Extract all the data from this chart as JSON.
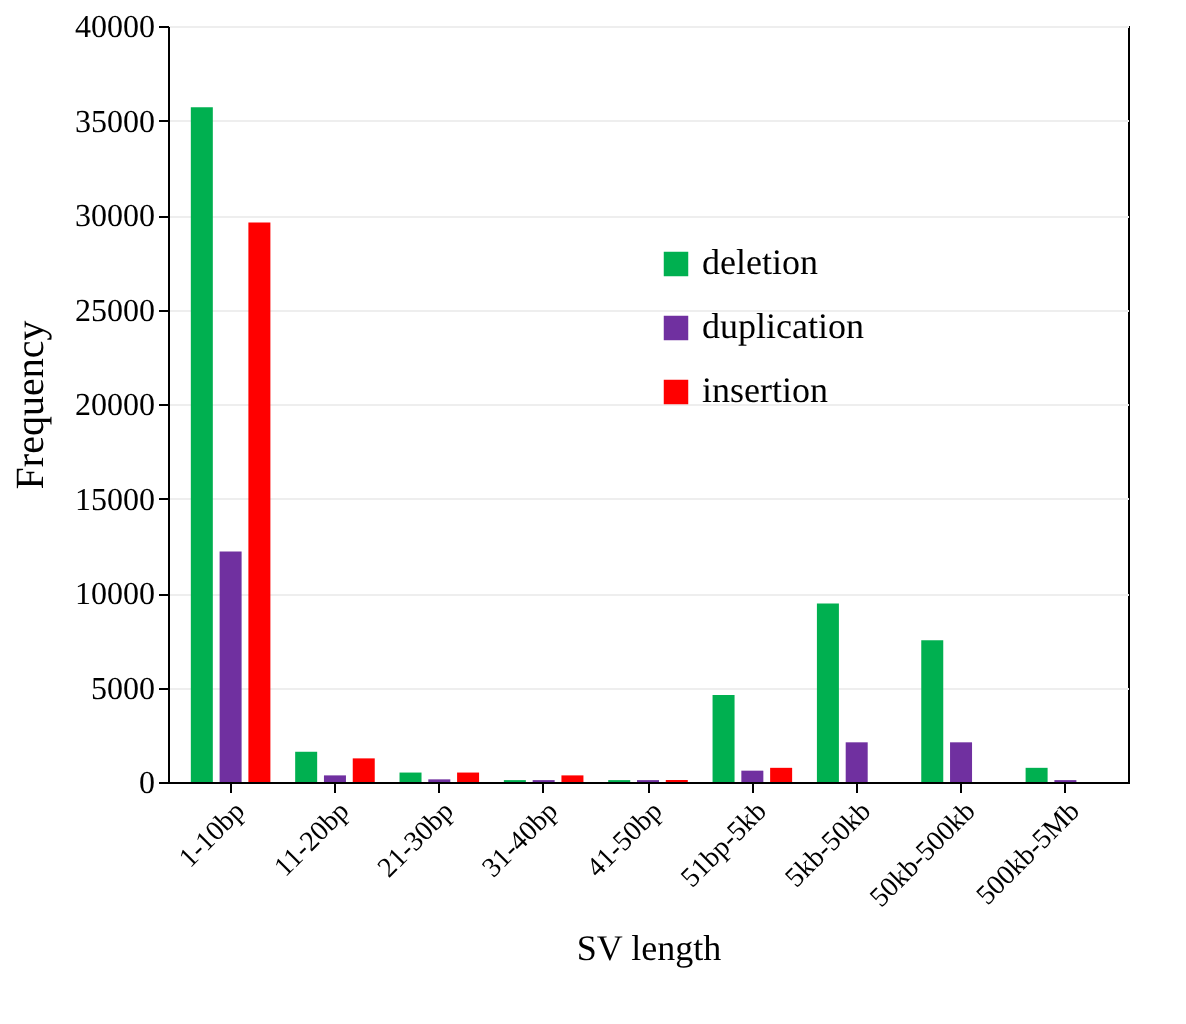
{
  "chart_data": {
    "type": "bar",
    "xlabel": "SV length",
    "ylabel": "Frequency",
    "categories": [
      "1-10bp",
      "11-20bp",
      "21-30bp",
      "31-40bp",
      "41-50bp",
      "51bp-5kb",
      "5kb-50kb",
      "50kb-500kb",
      "500kb-5Mb"
    ],
    "series": [
      {
        "name": "deletion",
        "color": "#00b050",
        "values": [
          35700,
          1600,
          500,
          100,
          100,
          4600,
          9450,
          7500,
          750
        ]
      },
      {
        "name": "duplication",
        "color": "#7030a0",
        "values": [
          12200,
          350,
          140,
          100,
          100,
          600,
          2100,
          2100,
          100
        ]
      },
      {
        "name": "insertion",
        "color": "#ff0000",
        "values": [
          29600,
          1250,
          500,
          350,
          100,
          750,
          0,
          0,
          0
        ]
      }
    ],
    "ylim": [
      0,
      40000
    ],
    "yticks": [
      0,
      5000,
      10000,
      15000,
      20000,
      25000,
      30000,
      35000,
      40000
    ],
    "grid": "y",
    "legend": "right"
  }
}
